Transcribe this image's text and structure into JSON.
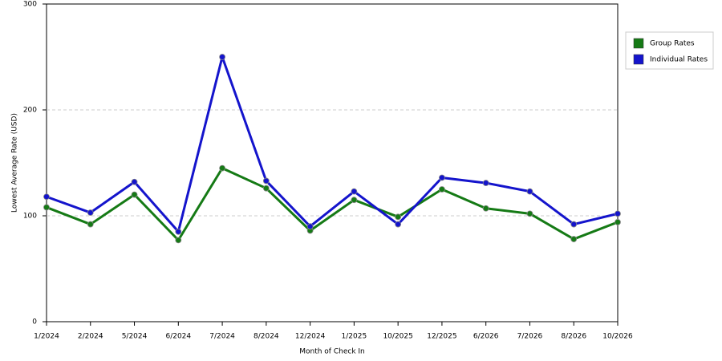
{
  "chart_data": {
    "type": "line",
    "x_label": "Month of Check In",
    "y_label": "Lowest Average Rate (USD)",
    "categories": [
      "1/2024",
      "2/2024",
      "5/2024",
      "6/2024",
      "7/2024",
      "8/2024",
      "12/2024",
      "1/2025",
      "10/2025",
      "12/2025",
      "6/2026",
      "7/2026",
      "8/2026",
      "10/2026"
    ],
    "series": [
      {
        "name": "Group Rates",
        "color": "#157a15",
        "values": [
          108,
          92,
          120,
          77,
          145,
          126,
          86,
          115,
          99,
          125,
          107,
          102,
          78,
          94
        ]
      },
      {
        "name": "Individual Rates",
        "color": "#1414cc",
        "values": [
          118,
          103,
          132,
          85,
          250,
          133,
          90,
          123,
          92,
          136,
          131,
          123,
          92,
          102
        ]
      }
    ],
    "ylim": [
      0,
      300
    ],
    "yticks": [
      0,
      100,
      200,
      300
    ],
    "grid": true
  }
}
